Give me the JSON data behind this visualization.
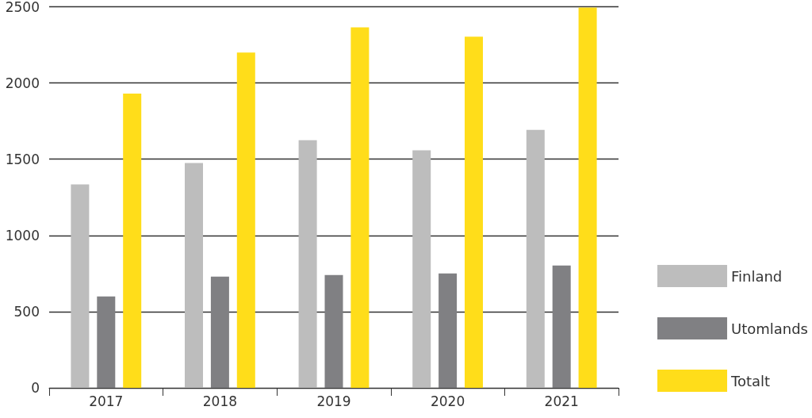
{
  "chart_data": {
    "type": "bar",
    "categories": [
      "2017",
      "2018",
      "2019",
      "2020",
      "2021"
    ],
    "series": [
      {
        "name": "Finland",
        "color": "#bdbdbd",
        "values": [
          1335,
          1475,
          1625,
          1558,
          1692
        ]
      },
      {
        "name": "Utomlands",
        "color": "#808083",
        "values": [
          600,
          730,
          740,
          750,
          802
        ]
      },
      {
        "name": "Totalt",
        "color": "#ffdd1a",
        "values": [
          1930,
          2200,
          2365,
          2303,
          2495
        ]
      }
    ],
    "ylim": [
      0,
      2500
    ],
    "yticks": [
      0,
      500,
      1000,
      1500,
      2000,
      2500
    ],
    "grid": "y",
    "legend": "right"
  }
}
